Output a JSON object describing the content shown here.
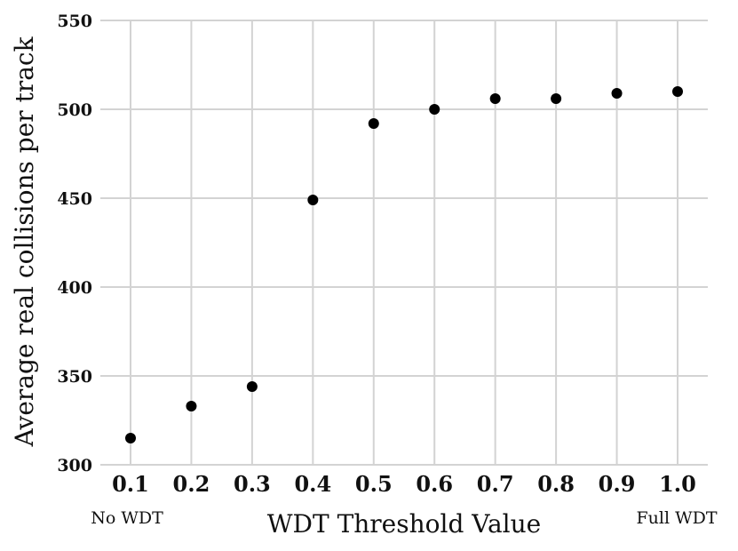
{
  "chart_data": {
    "type": "scatter",
    "title": "",
    "xlabel": "WDT Threshold Value",
    "ylabel": "Average real collisions per track",
    "x": [
      0.1,
      0.2,
      0.3,
      0.4,
      0.5,
      0.6,
      0.7,
      0.8,
      0.9,
      1.0
    ],
    "x_tick_labels": [
      "0.1",
      "0.2",
      "0.3",
      "0.4",
      "0.5",
      "0.6",
      "0.7",
      "0.8",
      "0.9",
      "1.0"
    ],
    "y": [
      315,
      333,
      344,
      449,
      492,
      500,
      506,
      506,
      509,
      510
    ],
    "y_ticks": [
      300,
      350,
      400,
      450,
      500,
      550
    ],
    "y_tick_labels": [
      "300",
      "350",
      "400",
      "450",
      "500",
      "550"
    ],
    "ylim": [
      300,
      550
    ],
    "grid": true,
    "point_color": "#000000",
    "grid_color": "#d3d3d3",
    "annotations": {
      "left": "No WDT",
      "right": "Full WDT"
    }
  }
}
